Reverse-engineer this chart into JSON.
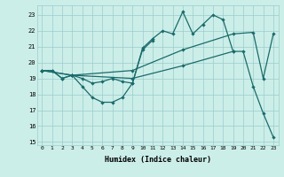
{
  "xlabel": "Humidex (Indice chaleur)",
  "bg_color": "#cceee8",
  "grid_color": "#99cccc",
  "line_color": "#1a6b6b",
  "xlim": [
    -0.5,
    23.5
  ],
  "ylim": [
    14.8,
    23.6
  ],
  "yticks": [
    15,
    16,
    17,
    18,
    19,
    20,
    21,
    22,
    23
  ],
  "xticks": [
    0,
    1,
    2,
    3,
    4,
    5,
    6,
    7,
    8,
    9,
    10,
    11,
    12,
    13,
    14,
    15,
    16,
    17,
    18,
    19,
    20,
    21,
    22,
    23
  ],
  "line1_x": [
    0,
    1,
    2,
    3,
    4,
    5,
    6,
    7,
    8,
    9,
    10,
    11,
    12,
    13,
    14,
    15,
    16,
    17,
    18,
    19
  ],
  "line1_y": [
    19.5,
    19.5,
    19.0,
    19.2,
    18.5,
    17.8,
    17.5,
    17.5,
    17.8,
    18.7,
    20.9,
    21.5,
    22.0,
    21.8,
    23.2,
    21.8,
    22.4,
    23.0,
    22.7,
    20.7
  ],
  "line2_x": [
    0,
    1,
    2,
    3,
    4,
    5,
    6,
    7,
    8,
    9,
    10,
    11
  ],
  "line2_y": [
    19.5,
    19.5,
    19.0,
    19.2,
    19.0,
    18.7,
    18.8,
    19.0,
    18.8,
    18.7,
    20.8,
    21.4
  ],
  "line3_x": [
    0,
    3,
    9,
    14,
    19,
    21,
    22,
    23
  ],
  "line3_y": [
    19.5,
    19.2,
    19.5,
    20.8,
    21.8,
    21.9,
    19.0,
    21.8
  ],
  "line4_x": [
    0,
    3,
    9,
    14,
    19,
    20,
    21,
    22,
    23
  ],
  "line4_y": [
    19.5,
    19.2,
    19.0,
    19.8,
    20.7,
    20.7,
    18.5,
    16.8,
    15.3
  ]
}
